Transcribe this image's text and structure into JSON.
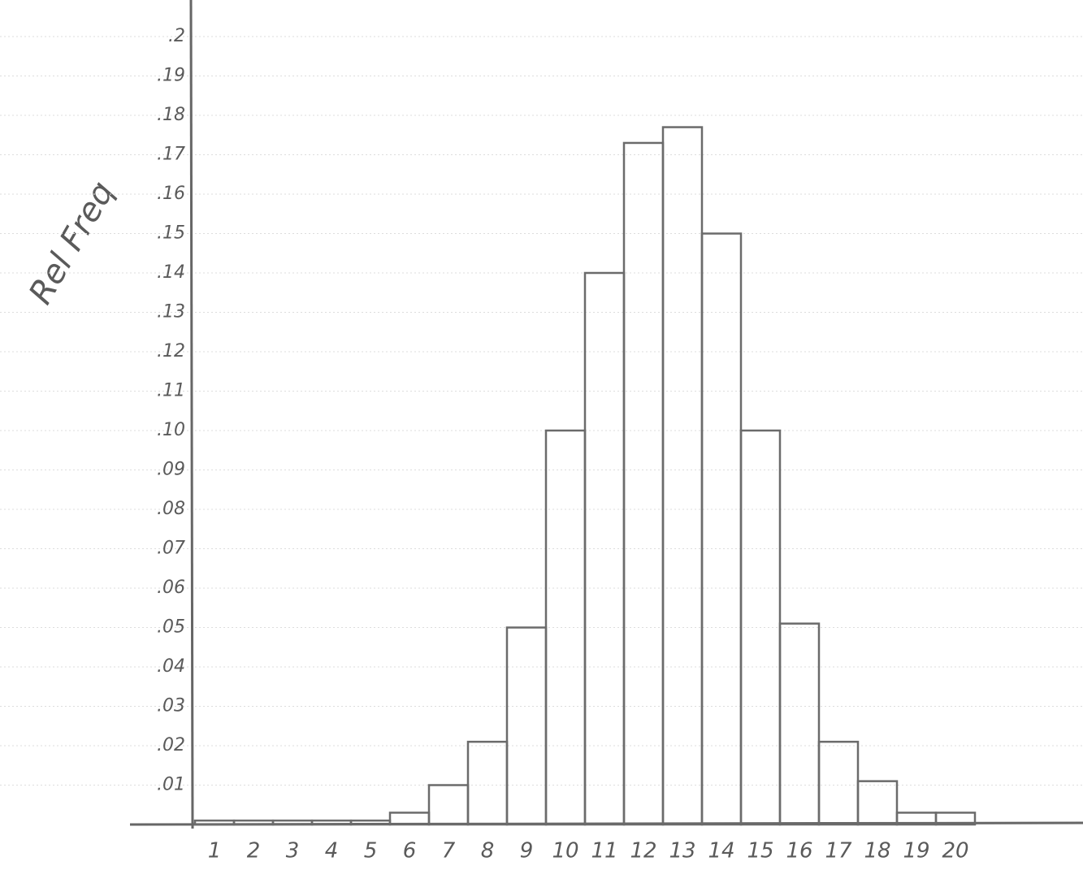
{
  "chart_data": {
    "type": "bar",
    "y_label": "Rel Freq",
    "categories": [
      "1",
      "2",
      "3",
      "4",
      "5",
      "6",
      "7",
      "8",
      "9",
      "10",
      "11",
      "12",
      "13",
      "14",
      "15",
      "16",
      "17",
      "18",
      "19",
      "20"
    ],
    "values": [
      0.001,
      0.001,
      0.001,
      0.001,
      0.001,
      0.003,
      0.01,
      0.021,
      0.05,
      0.1,
      0.14,
      0.173,
      0.177,
      0.15,
      0.1,
      0.051,
      0.021,
      0.011,
      0.003,
      0.003
    ],
    "color": "#6b6b6b",
    "ylim": [
      0,
      0.2
    ],
    "yticks": [
      {
        "value": 0.01,
        "label": ".01"
      },
      {
        "value": 0.02,
        "label": ".02"
      },
      {
        "value": 0.03,
        "label": ".03"
      },
      {
        "value": 0.04,
        "label": ".04"
      },
      {
        "value": 0.05,
        "label": ".05"
      },
      {
        "value": 0.06,
        "label": ".06"
      },
      {
        "value": 0.07,
        "label": ".07"
      },
      {
        "value": 0.08,
        "label": ".08"
      },
      {
        "value": 0.09,
        "label": ".09"
      },
      {
        "value": 0.1,
        "label": ".10"
      },
      {
        "value": 0.11,
        "label": ".11"
      },
      {
        "value": 0.12,
        "label": ".12"
      },
      {
        "value": 0.13,
        "label": ".13"
      },
      {
        "value": 0.14,
        "label": ".14"
      },
      {
        "value": 0.15,
        "label": ".15"
      },
      {
        "value": 0.16,
        "label": ".16"
      },
      {
        "value": 0.17,
        "label": ".17"
      },
      {
        "value": 0.18,
        "label": ".18"
      },
      {
        "value": 0.19,
        "label": ".19"
      },
      {
        "value": 0.2,
        "label": ".2"
      }
    ],
    "grid": true
  }
}
